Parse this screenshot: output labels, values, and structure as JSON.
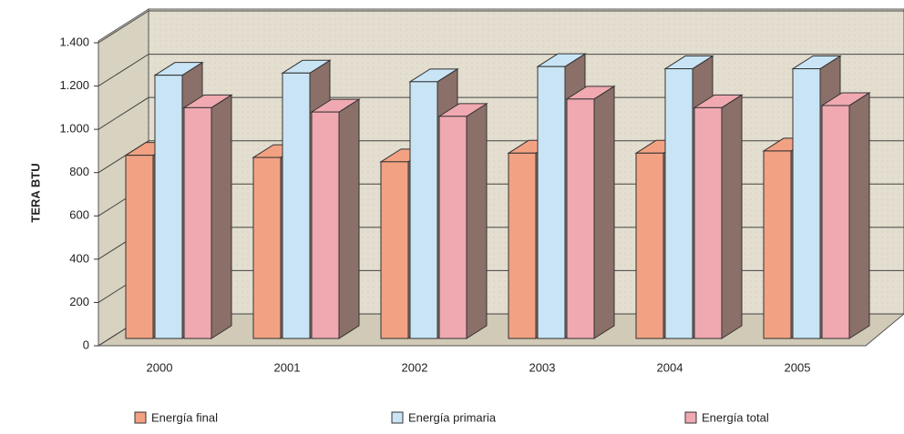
{
  "chart_data": {
    "type": "bar3d",
    "y_label": "TERA BTU",
    "categories": [
      "2000",
      "2001",
      "2002",
      "2003",
      "2004",
      "2005"
    ],
    "series": [
      {
        "name": "Energía final",
        "color": "#f2a283",
        "values": [
          880,
          870,
          850,
          890,
          890,
          900
        ]
      },
      {
        "name": "Energía primaria",
        "color": "#c9e5f5",
        "values": [
          1250,
          1260,
          1220,
          1290,
          1280,
          1280
        ]
      },
      {
        "name": "Energía total",
        "color": "#f0a9b1",
        "values": [
          1100,
          1080,
          1060,
          1140,
          1100,
          1110
        ]
      }
    ],
    "ylim": [
      0,
      1400
    ],
    "yticks": [
      0,
      200,
      400,
      600,
      800,
      {
        "value": 1000,
        "label": "1.000"
      },
      {
        "value": 1200,
        "label": "1.200"
      },
      {
        "value": 1400,
        "label": "1.400"
      }
    ],
    "grid": true
  }
}
